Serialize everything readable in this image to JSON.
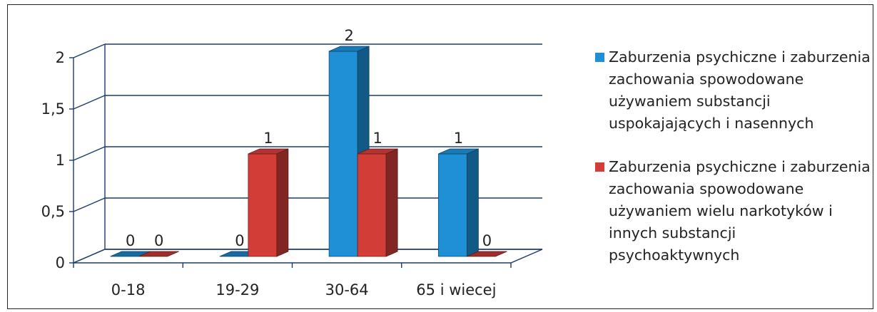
{
  "chart_data": {
    "type": "bar",
    "categories": [
      "0-18",
      "19-29",
      "30-64",
      "65 i wiecej"
    ],
    "series": [
      {
        "name": "Zaburzenia psychiczne i zaburzenia zachowania spowodowane używaniem substancji uspokajających i nasennych",
        "values": [
          0,
          0,
          2,
          1
        ],
        "color": "#1f8fd6"
      },
      {
        "name": "Zaburzenia psychiczne i zaburzenia zachowania spowodowane używaniem wielu narkotyków i innych substancji psychoaktywnych",
        "values": [
          0,
          1,
          1,
          0
        ],
        "color": "#d23d38"
      }
    ],
    "y_ticks": [
      "0",
      "0,5",
      "1",
      "1,5",
      "2"
    ],
    "data_labels": [
      [
        "0",
        "0",
        "2",
        "1"
      ],
      [
        "0",
        "1",
        "1",
        "0"
      ]
    ],
    "ylim": [
      0,
      2
    ],
    "grid": true,
    "legend_position": "right",
    "three_d": true
  },
  "legend": {
    "items": [
      {
        "lines": [
          "Zaburzenia psychiczne i zaburzenia",
          "zachowania spowodowane",
          "używaniem substancji",
          "uspokajających i nasennych"
        ],
        "color": "#1f8fd6"
      },
      {
        "lines": [
          "Zaburzenia psychiczne i zaburzenia",
          "zachowania spowodowane",
          "używaniem wielu narkotyków i",
          "innych substancji",
          "psychoaktywnych"
        ],
        "color": "#d23d38"
      }
    ]
  }
}
